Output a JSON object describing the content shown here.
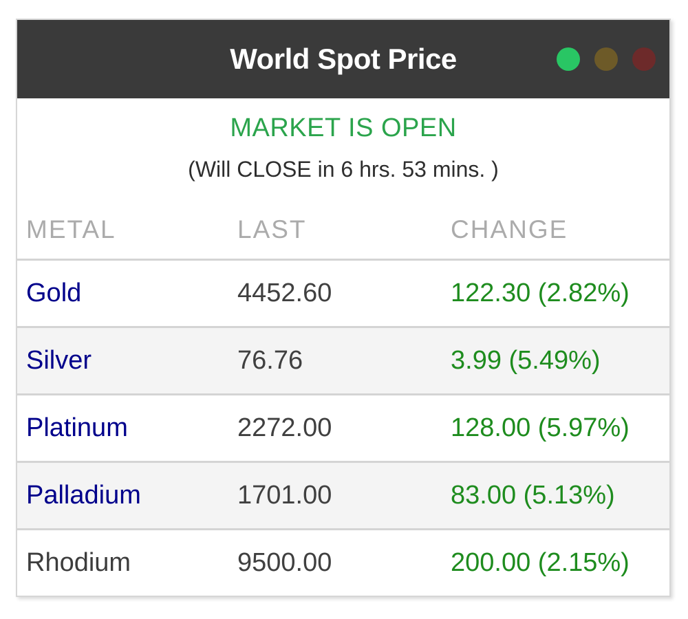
{
  "widget": {
    "title": "World Spot Price",
    "window_dots": [
      {
        "name": "green-dot-icon",
        "color": "#29c664"
      },
      {
        "name": "olive-dot-icon",
        "color": "#6d5a28"
      },
      {
        "name": "red-dot-icon",
        "color": "#6d2a2a"
      }
    ],
    "status": {
      "market_state": "MARKET IS OPEN",
      "countdown": "(Will CLOSE in 6 hrs. 53 mins. )"
    },
    "table": {
      "headers": [
        "METAL",
        "LAST",
        "CHANGE"
      ],
      "rows": [
        {
          "metal": "Gold",
          "last": "4452.60",
          "change": "122.30 (2.82%)",
          "link": true
        },
        {
          "metal": "Silver",
          "last": "76.76",
          "change": "3.99 (5.49%)",
          "link": true
        },
        {
          "metal": "Platinum",
          "last": "2272.00",
          "change": "128.00 (5.97%)",
          "link": true
        },
        {
          "metal": "Palladium",
          "last": "1701.00",
          "change": "83.00 (5.13%)",
          "link": true
        },
        {
          "metal": "Rhodium",
          "last": "9500.00",
          "change": "200.00 (2.15%)",
          "link": false
        }
      ]
    },
    "colors": {
      "titlebar_bg": "#3a3a3a",
      "market_open_green": "#2ba44c",
      "change_green": "#1e8c1e",
      "metal_link_navy": "#00008b",
      "row_alt_bg": "#f4f4f4"
    }
  }
}
